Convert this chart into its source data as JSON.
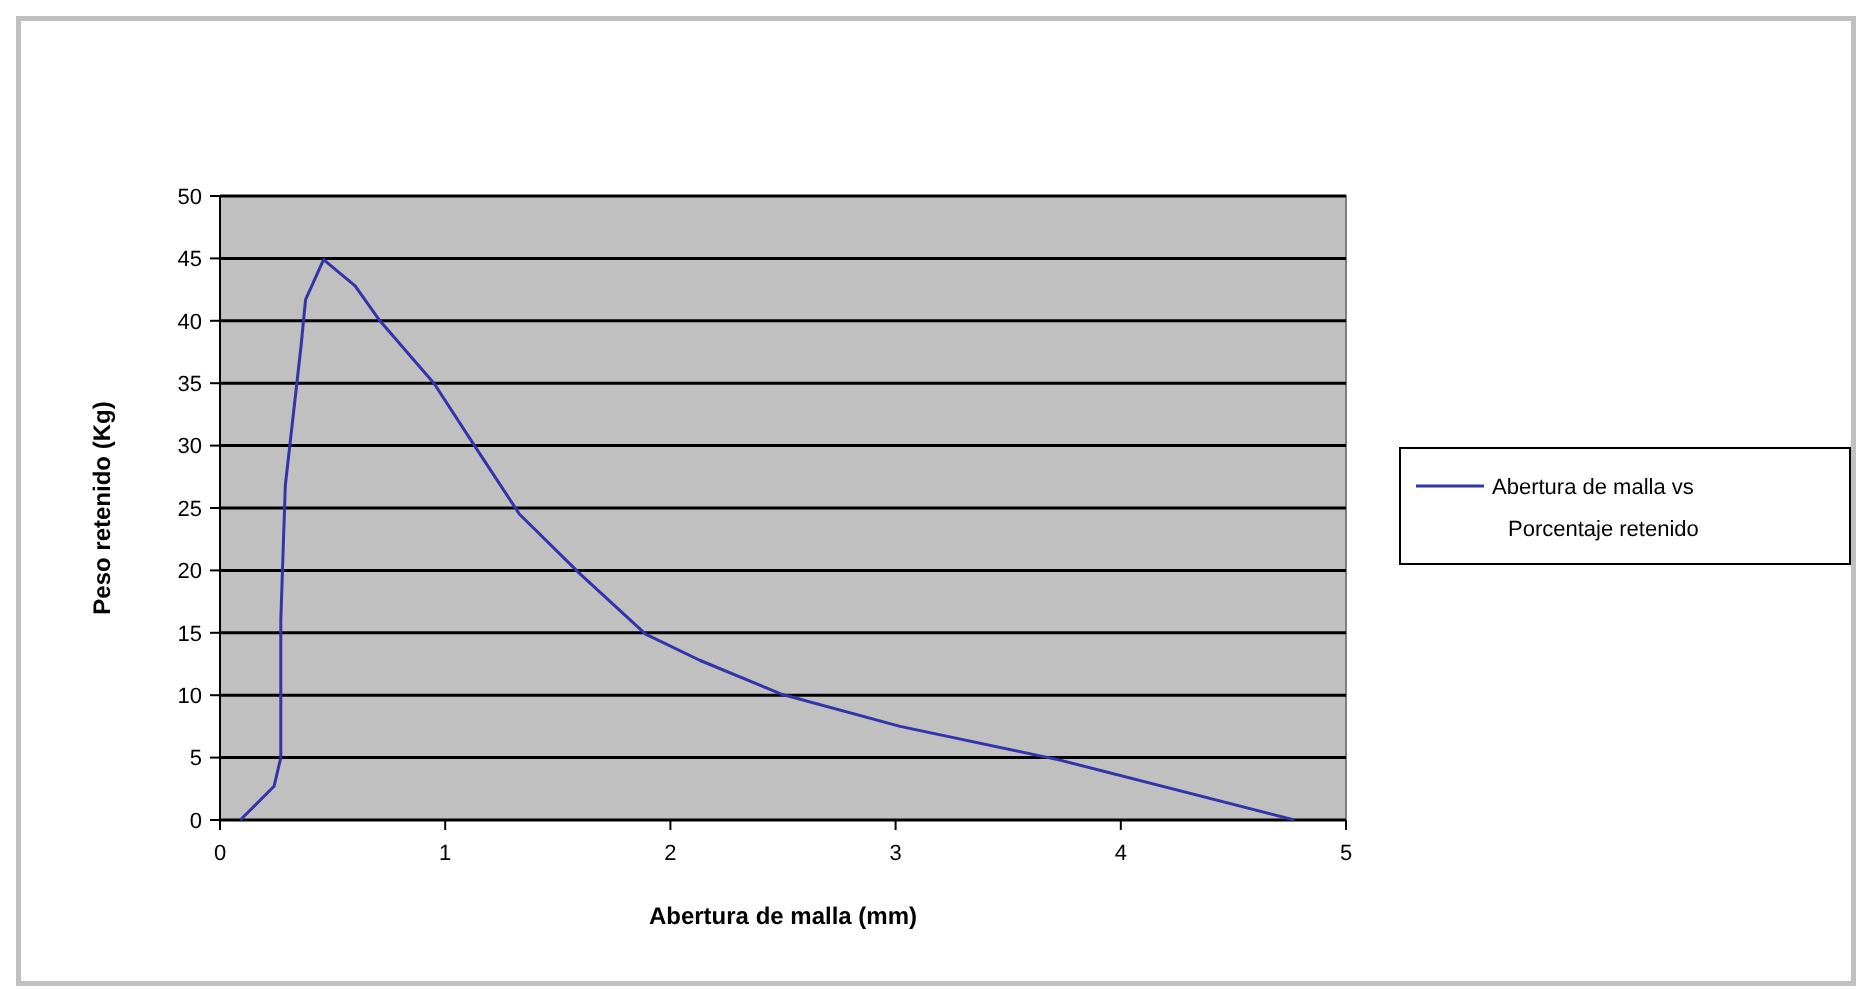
{
  "chart_data": {
    "type": "line",
    "xlabel": "Abertura de malla (mm)",
    "ylabel": "Peso retenido (Kg)",
    "x": [
      0.09,
      0.24,
      0.27,
      0.27,
      0.29,
      0.36,
      0.38,
      0.46,
      0.6,
      0.71,
      0.95,
      1.13,
      1.33,
      1.6,
      1.89,
      2.13,
      2.49,
      3.02,
      3.73,
      4.77
    ],
    "series": [
      {
        "name": "Abertura de malla vs Porcentaje retenido",
        "color": "#3333aa",
        "values": [
          0,
          2.7,
          5,
          16,
          26.8,
          38,
          41.7,
          44.9,
          42.8,
          40,
          35,
          30,
          24.5,
          19.7,
          14.9,
          12.8,
          10.1,
          7.5,
          4.8,
          0
        ]
      }
    ],
    "xlim": [
      0,
      5
    ],
    "xticks": [
      0,
      1,
      2,
      3,
      4,
      5
    ],
    "ylim": [
      0,
      50
    ],
    "yticks": [
      0,
      5,
      10,
      15,
      20,
      25,
      30,
      35,
      40,
      45,
      50
    ],
    "grid": "y",
    "legend": "right",
    "marker": "none",
    "line_style": "solid"
  }
}
